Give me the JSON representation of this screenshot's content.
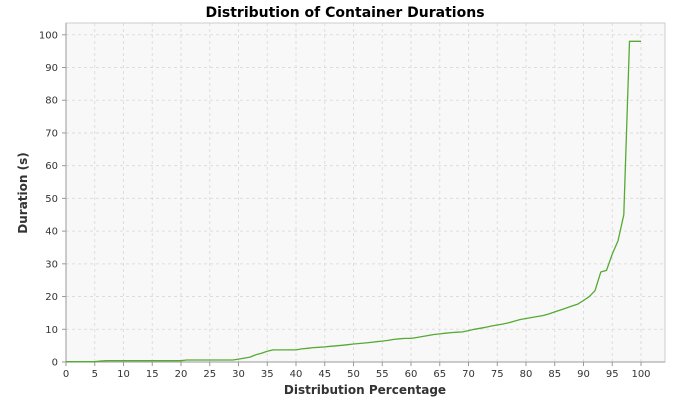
{
  "chart_data": {
    "type": "line",
    "title": "Distribution of Container Durations",
    "xlabel": "Distribution Percentage",
    "ylabel": "Duration (s)",
    "xlim": [
      0,
      100
    ],
    "ylim": [
      0,
      100
    ],
    "x_ticks": [
      0,
      5,
      10,
      15,
      20,
      25,
      30,
      35,
      40,
      45,
      50,
      55,
      60,
      65,
      70,
      75,
      80,
      85,
      90,
      95,
      100
    ],
    "y_ticks": [
      0,
      10,
      20,
      30,
      40,
      50,
      60,
      70,
      80,
      90,
      100
    ],
    "grid": true,
    "legend": "none",
    "colors": {
      "line": "#55aa33",
      "plot_bg": "#f8f8f8",
      "grid": "#dddddd",
      "axis": "#999999"
    },
    "series": [
      {
        "x": [
          0,
          5,
          6,
          7,
          20,
          21,
          29,
          30,
          31,
          32,
          33,
          34,
          35,
          36,
          40,
          41,
          42,
          43,
          44,
          45,
          46,
          48,
          49,
          50,
          52,
          53,
          54,
          55,
          56,
          57,
          58,
          59,
          60,
          61,
          62,
          63,
          64,
          65,
          66,
          67,
          68,
          69,
          70,
          71,
          72,
          73,
          74,
          75,
          76,
          77,
          78,
          79,
          80,
          81,
          82,
          83,
          84,
          85,
          86,
          87,
          88,
          89,
          90,
          91,
          92,
          93,
          94,
          95,
          96,
          97,
          98,
          99,
          100
        ],
        "y": [
          0.1,
          0.1,
          0.3,
          0.4,
          0.4,
          0.6,
          0.6,
          0.9,
          1.2,
          1.5,
          2.2,
          2.7,
          3.3,
          3.7,
          3.7,
          4.0,
          4.2,
          4.4,
          4.5,
          4.6,
          4.8,
          5.1,
          5.3,
          5.5,
          5.8,
          6.0,
          6.2,
          6.4,
          6.6,
          6.9,
          7.1,
          7.2,
          7.2,
          7.5,
          7.8,
          8.1,
          8.4,
          8.6,
          8.8,
          9.0,
          9.1,
          9.2,
          9.6,
          10.0,
          10.3,
          10.6,
          11.0,
          11.3,
          11.6,
          12.0,
          12.5,
          13.0,
          13.3,
          13.6,
          13.9,
          14.2,
          14.7,
          15.3,
          15.9,
          16.5,
          17.1,
          17.7,
          18.8,
          20.0,
          21.8,
          27.5,
          28.0,
          33.0,
          37.0,
          45.0,
          98.0,
          98.0,
          98.0
        ]
      }
    ]
  }
}
